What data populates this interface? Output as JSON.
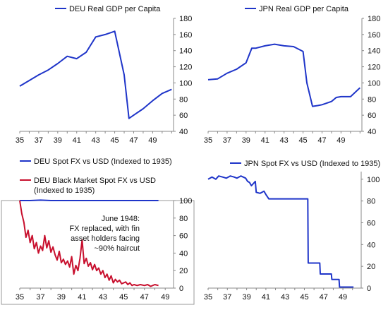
{
  "colors": {
    "blue": "#1f35c9",
    "red": "#c8102e",
    "axis": "#888888",
    "panel_border": "#999999"
  },
  "chart_data": [
    {
      "type": "line",
      "legend": [
        "DEU Real GDP per Capita"
      ],
      "xticks": [
        "35",
        "37",
        "39",
        "41",
        "43",
        "45",
        "47",
        "49"
      ],
      "xlim": [
        35,
        51.2
      ],
      "ylim": [
        40,
        180
      ],
      "yticks": [
        "40",
        "60",
        "80",
        "100",
        "120",
        "140",
        "160",
        "180"
      ],
      "series": [
        {
          "name": "DEU Real GDP per Capita",
          "x": [
            35,
            36,
            37,
            38,
            39,
            40,
            41,
            42,
            43,
            44,
            45,
            46,
            46.5,
            47,
            48,
            49,
            50,
            51
          ],
          "y": [
            96,
            103,
            110,
            116,
            124,
            133,
            130,
            138,
            157,
            160,
            164,
            110,
            56,
            60,
            68,
            78,
            87,
            92
          ]
        }
      ]
    },
    {
      "type": "line",
      "legend": [
        "JPN Real GDP per Capita"
      ],
      "xticks": [
        "35",
        "37",
        "39",
        "41",
        "43",
        "45",
        "47",
        "49"
      ],
      "xlim": [
        35,
        51.2
      ],
      "ylim": [
        40,
        180
      ],
      "yticks": [
        "40",
        "60",
        "80",
        "100",
        "120",
        "140",
        "160",
        "180"
      ],
      "series": [
        {
          "name": "JPN Real GDP per Capita",
          "x": [
            35,
            36,
            37,
            38,
            39,
            39.6,
            40,
            41,
            42,
            43,
            44,
            45,
            45.4,
            46,
            46.6,
            47,
            48,
            48.5,
            49,
            50,
            51
          ],
          "y": [
            104,
            105,
            112,
            117,
            125,
            143,
            143,
            146,
            148,
            146,
            145,
            139,
            100,
            71,
            72,
            73,
            77,
            82,
            83,
            83,
            94
          ]
        }
      ]
    },
    {
      "type": "line",
      "legend": [
        "DEU Spot FX vs USD (Indexed to 1935)",
        "DEU Black Market Spot FX vs USD (Indexed to 1935)"
      ],
      "annotation": [
        "June 1948:",
        "FX replaced, with fin",
        "asset holders facing",
        "~90% haircut"
      ],
      "xticks": [
        "35",
        "37",
        "39",
        "41",
        "43",
        "45",
        "47",
        "49"
      ],
      "xlim": [
        35,
        49.8
      ],
      "ylim": [
        0,
        100
      ],
      "yticks": [
        "0",
        "20",
        "40",
        "60",
        "80",
        "100"
      ],
      "series": [
        {
          "name": "DEU Spot FX vs USD (Indexed to 1935)",
          "x": [
            35,
            36,
            37,
            38,
            39,
            40,
            41,
            42,
            43,
            44,
            45,
            46,
            47,
            48,
            48.35
          ],
          "y": [
            100,
            100,
            100.5,
            100,
            100,
            100,
            100,
            100,
            100,
            100,
            100,
            100,
            100,
            100,
            100
          ]
        },
        {
          "name": "DEU Black Market Spot FX vs USD (Indexed to 1935)",
          "x": [
            35,
            35.2,
            35.4,
            35.6,
            35.8,
            36,
            36.2,
            36.4,
            36.6,
            36.8,
            37,
            37.2,
            37.4,
            37.6,
            37.8,
            38,
            38.2,
            38.4,
            38.6,
            38.8,
            39,
            39.2,
            39.4,
            39.6,
            39.8,
            40,
            40.2,
            40.4,
            40.6,
            40.8,
            41,
            41.2,
            41.4,
            41.6,
            41.8,
            42,
            42.2,
            42.4,
            42.6,
            42.8,
            43,
            43.2,
            43.4,
            43.6,
            43.8,
            44,
            44.2,
            44.4,
            44.6,
            44.8,
            45,
            45.2,
            45.4,
            45.6,
            45.8,
            46,
            46.3,
            46.6,
            47,
            47.3,
            47.6,
            48,
            48.35
          ],
          "y": [
            100,
            85,
            75,
            58,
            66,
            52,
            60,
            45,
            52,
            40,
            48,
            43,
            60,
            46,
            54,
            41,
            47,
            38,
            32,
            42,
            29,
            33,
            27,
            31,
            24,
            36,
            16,
            26,
            20,
            34,
            55,
            28,
            34,
            25,
            29,
            21,
            27,
            20,
            23,
            16,
            20,
            12,
            16,
            9,
            14,
            6,
            10,
            7,
            9,
            5,
            6,
            7,
            4,
            6,
            3,
            4,
            3,
            4,
            3,
            4,
            2,
            4,
            3
          ]
        }
      ]
    },
    {
      "type": "line",
      "legend": [
        "JPN Spot FX vs USD (Indexed to 1935)"
      ],
      "xticks": [
        "35",
        "37",
        "39",
        "41",
        "43",
        "45",
        "47",
        "49"
      ],
      "xlim": [
        35,
        50.9
      ],
      "ylim": [
        0,
        107
      ],
      "yticks": [
        "0",
        "20",
        "40",
        "60",
        "80",
        "100"
      ],
      "series": [
        {
          "name": "JPN Spot FX vs USD (Indexed to 1935)",
          "x": [
            35,
            35.4,
            35.8,
            36.1,
            36.5,
            36.9,
            37.3,
            37.7,
            38,
            38.4,
            38.9,
            39.1,
            39.3,
            39.5,
            39.9,
            40.0,
            40.4,
            40.8,
            41.0,
            41.3,
            42,
            43,
            44,
            45,
            45.35,
            45.4,
            46.6,
            46.65,
            47.8,
            47.85,
            48.6,
            48.65,
            49.4,
            50.1
          ],
          "y": [
            100,
            102,
            100,
            103,
            102,
            101,
            103,
            102,
            101,
            103,
            101,
            98,
            97,
            94,
            98,
            88,
            87,
            89,
            86,
            82,
            82,
            82,
            82,
            82,
            82,
            23,
            23,
            13,
            13,
            8,
            8,
            1,
            1,
            1
          ]
        }
      ]
    }
  ]
}
